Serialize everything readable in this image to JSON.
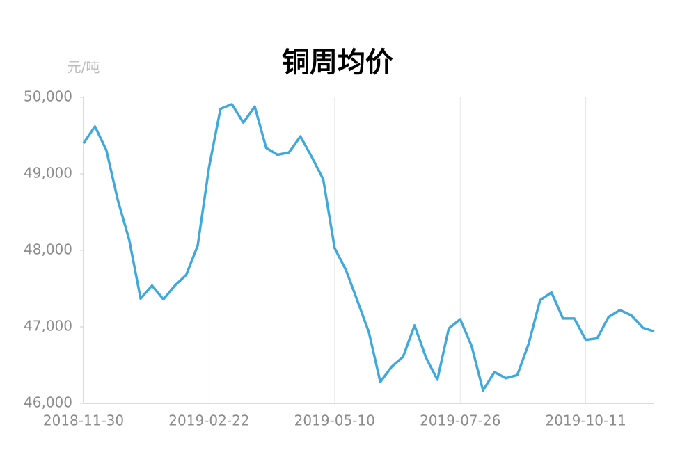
{
  "chart_data": {
    "type": "line",
    "title": "铜周均价",
    "ylabel": "元/吨",
    "categories": [
      "2018-11-30",
      null,
      null,
      null,
      null,
      null,
      null,
      null,
      null,
      null,
      null,
      "2019-02-22",
      null,
      null,
      null,
      null,
      null,
      null,
      null,
      null,
      null,
      null,
      "2019-05-10",
      null,
      null,
      null,
      null,
      null,
      null,
      null,
      null,
      null,
      null,
      "2019-07-26",
      null,
      null,
      null,
      null,
      null,
      null,
      null,
      null,
      null,
      null,
      "2019-10-11",
      null,
      null,
      null,
      null,
      null,
      null
    ],
    "series": [
      {
        "color": "#3fa9dc",
        "values": [
          49400,
          49620,
          49310,
          48660,
          48140,
          47370,
          47540,
          47360,
          47540,
          47680,
          48060,
          49090,
          49850,
          49910,
          49670,
          49880,
          49340,
          49250,
          49280,
          49490,
          49220,
          48930,
          48030,
          47740,
          47340,
          46930,
          46280,
          46480,
          46610,
          47020,
          46600,
          46310,
          46980,
          47100,
          46750,
          46170,
          46410,
          46330,
          46370,
          46780,
          47350,
          47450,
          47110,
          47110,
          46830,
          46850,
          47130,
          47220,
          47150,
          46990,
          46940
        ]
      }
    ],
    "ylim": [
      46000,
      50000
    ],
    "yticks": [
      {
        "value": 46000,
        "label": "46,000"
      },
      {
        "value": 47000,
        "label": "47,000"
      },
      {
        "value": 48000,
        "label": "48,000"
      },
      {
        "value": 49000,
        "label": "49,000"
      },
      {
        "value": 50000,
        "label": "50,000"
      }
    ],
    "grid": "x"
  }
}
